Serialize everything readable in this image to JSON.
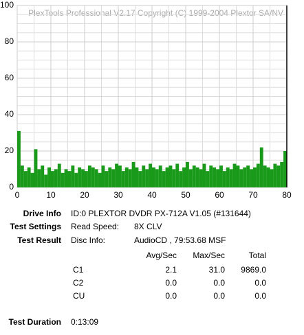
{
  "chart_data": {
    "type": "bar",
    "subtitle": "PlexTools Professional V2.17 Copyright (C) 1999-2004 Plextor SA/NV",
    "x": [
      0,
      1,
      2,
      3,
      4,
      5,
      6,
      7,
      8,
      9,
      10,
      11,
      12,
      13,
      14,
      15,
      16,
      17,
      18,
      19,
      20,
      21,
      22,
      23,
      24,
      25,
      26,
      27,
      28,
      29,
      30,
      31,
      32,
      33,
      34,
      35,
      36,
      37,
      38,
      39,
      40,
      41,
      42,
      43,
      44,
      45,
      46,
      47,
      48,
      49,
      50,
      51,
      52,
      53,
      54,
      55,
      56,
      57,
      58,
      59,
      60,
      61,
      62,
      63,
      64,
      65,
      66,
      67,
      68,
      69,
      70,
      71,
      72,
      73,
      74,
      75,
      76,
      77,
      78,
      79
    ],
    "values": [
      31,
      12,
      9,
      11,
      8,
      21,
      10,
      12,
      7,
      11,
      9,
      10,
      13,
      8,
      10,
      9,
      12,
      8,
      11,
      10,
      9,
      12,
      11,
      10,
      8,
      12,
      9,
      11,
      10,
      13,
      12,
      9,
      11,
      10,
      14,
      11,
      9,
      12,
      10,
      13,
      11,
      10,
      12,
      9,
      11,
      12,
      10,
      13,
      9,
      11,
      14,
      10,
      12,
      11,
      10,
      13,
      9,
      12,
      11,
      10,
      12,
      9,
      11,
      10,
      13,
      12,
      10,
      11,
      12,
      10,
      11,
      13,
      22,
      12,
      11,
      10,
      13,
      12,
      14,
      20
    ],
    "color": "#1a9a1a",
    "xlim": [
      0,
      80
    ],
    "ylim": [
      0,
      100
    ],
    "xticks": [
      0,
      10,
      20,
      30,
      40,
      50,
      60,
      70,
      80
    ],
    "yticks": [
      0,
      20,
      40,
      60,
      80,
      100
    ],
    "minor_xticks": [
      5,
      15,
      25,
      35,
      45,
      55,
      65,
      75
    ],
    "minor_yticks": [
      5,
      10,
      15,
      25,
      30,
      35,
      45,
      50,
      55,
      65,
      70,
      75,
      85,
      90,
      95
    ],
    "grid": true
  },
  "info": {
    "drive_label": "Drive Info",
    "drive_value": "ID:0 PLEXTOR DVDR PX-712A V1.05 (#131644)",
    "settings_label": "Test Settings",
    "speed_label": "Read Speed:",
    "speed_value": "8X CLV",
    "result_label": "Test Result",
    "disc_label": "Disc Info:",
    "disc_value": "AudioCD , 79:53.68 MSF",
    "table": {
      "header": [
        "Avg/Sec",
        "Max/Sec",
        "Total"
      ],
      "rows": [
        [
          "C1",
          "2.1",
          "31.0",
          "9869.0"
        ],
        [
          "C2",
          "0.0",
          "0.0",
          "0.0"
        ],
        [
          "CU",
          "0.0",
          "0.0",
          "0.0"
        ]
      ]
    },
    "duration_label": "Test Duration",
    "duration_value": "0:13:09"
  }
}
